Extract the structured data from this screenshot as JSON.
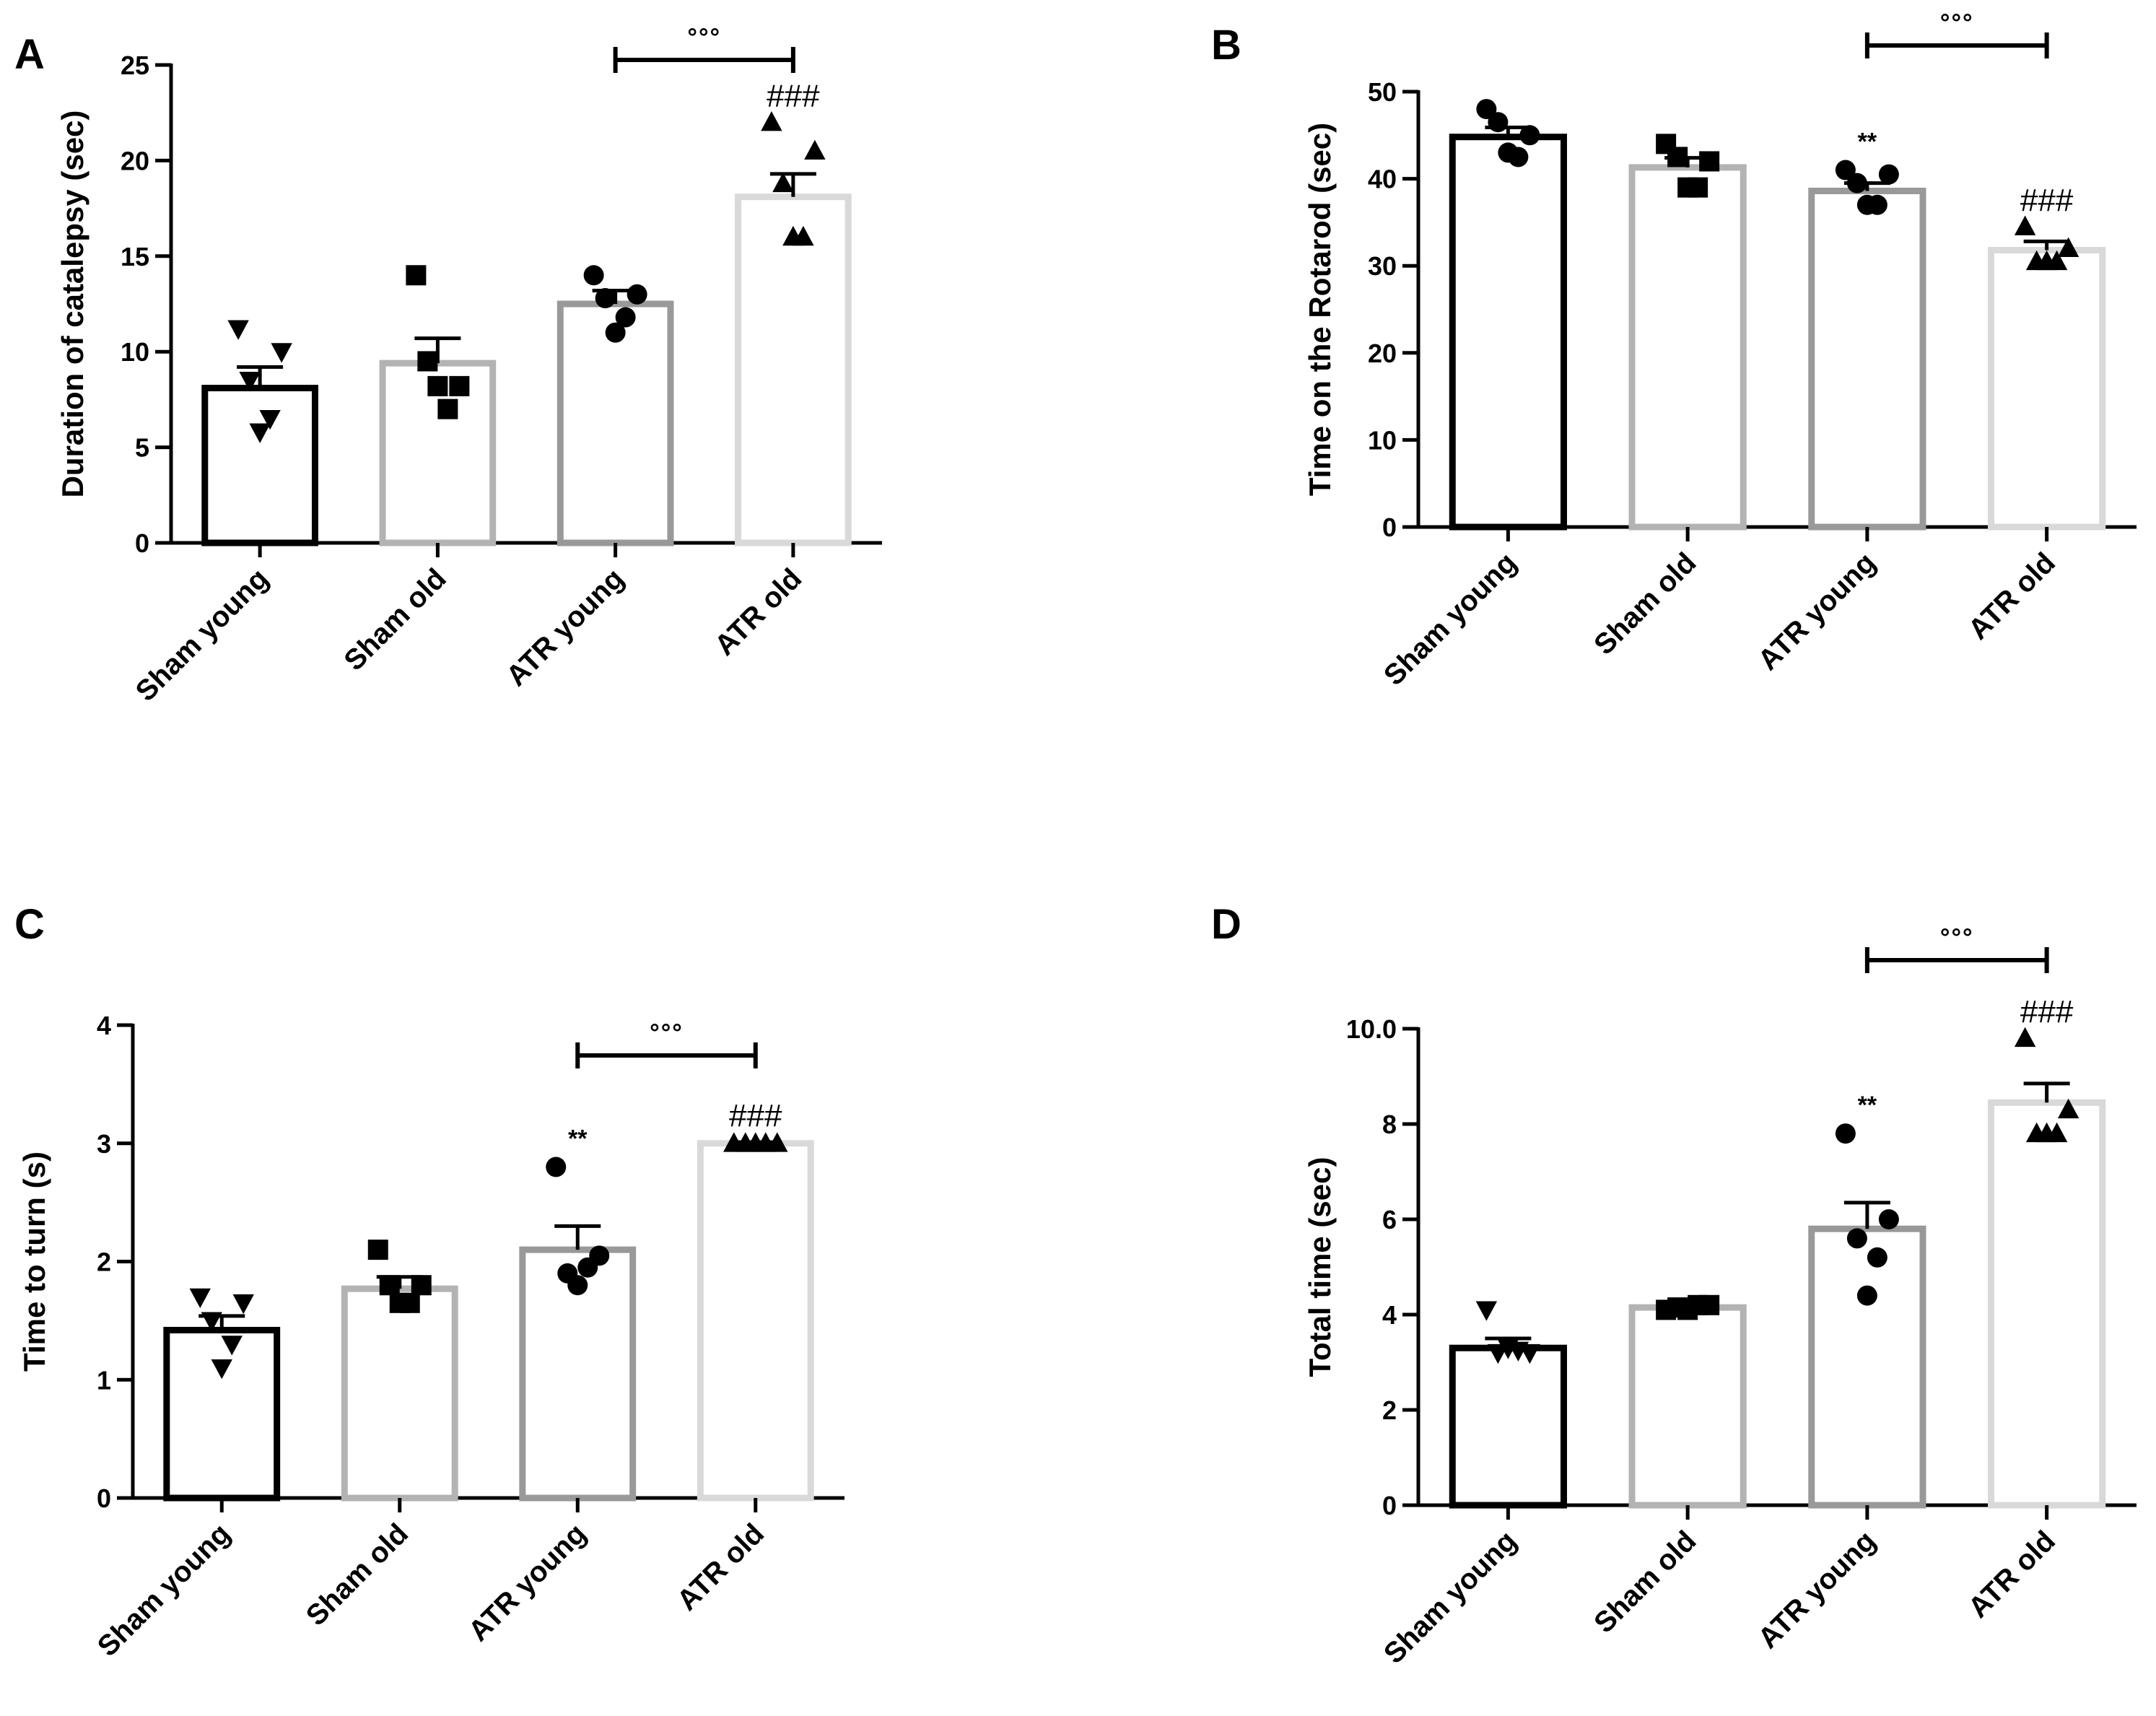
{
  "figure": {
    "group_colors": [
      "#000000",
      "#b3b3b3",
      "#999999",
      "#d9d9d9"
    ],
    "marker_color": "#000000",
    "axis_color": "#000000"
  },
  "chart_data": [
    {
      "panel": "A",
      "type": "bar",
      "categories": [
        "Sham young",
        "Sham old",
        "ATR young",
        "ATR old"
      ],
      "values": [
        8.1,
        9.4,
        12.5,
        18.1
      ],
      "sem": [
        1.1,
        1.3,
        0.7,
        1.2
      ],
      "points": [
        [
          11.2,
          10.0,
          8.5,
          6.5,
          5.8
        ],
        [
          14.0,
          8.2,
          9.5,
          7.0,
          8.2
        ],
        [
          14.0,
          13.0,
          12.8,
          11.8,
          11.0
        ],
        [
          22.0,
          20.5,
          18.8,
          16.0,
          16.0
        ]
      ],
      "marker": "triangle-down",
      "markers": [
        "triangle-down",
        "square",
        "circle",
        "triangle-up"
      ],
      "ylabel": "Duration of catalepsy (sec)",
      "xlabel": "",
      "ylim": [
        0,
        25
      ],
      "yticks": [
        0,
        5,
        10,
        15,
        20,
        25
      ],
      "tick_labels": [
        "0",
        "5",
        "10",
        "15",
        "20",
        "25"
      ],
      "grid": false,
      "annotations": [
        {
          "group": "ATR old",
          "text": "###"
        }
      ],
      "bracket": {
        "from": "ATR young",
        "to": "ATR old",
        "text": "°°°"
      }
    },
    {
      "panel": "B",
      "type": "bar",
      "categories": [
        "Sham young",
        "Sham old",
        "ATR young",
        "ATR old"
      ],
      "values": [
        44.8,
        41.3,
        38.6,
        31.8
      ],
      "sem": [
        1.1,
        1.1,
        0.9,
        1.0
      ],
      "points": [
        [
          48.0,
          45.0,
          46.5,
          42.5,
          43.0
        ],
        [
          44.0,
          42.0,
          42.5,
          39.0,
          39.0
        ],
        [
          41.0,
          40.5,
          39.5,
          37.0,
          37.0
        ],
        [
          34.5,
          32.0,
          30.5,
          30.5,
          30.5
        ]
      ],
      "markers": [
        "circle",
        "square",
        "circle",
        "triangle-up"
      ],
      "ylabel": "Time on the Rotarod (sec)",
      "xlabel": "",
      "ylim": [
        0,
        50
      ],
      "yticks": [
        0,
        10,
        20,
        30,
        40,
        50
      ],
      "tick_labels": [
        "0",
        "10",
        "20",
        "30",
        "40",
        "50"
      ],
      "grid": false,
      "annotations": [
        {
          "group": "ATR young",
          "text": "**"
        },
        {
          "group": "ATR old",
          "text": "###"
        }
      ],
      "bracket": {
        "from": "ATR young",
        "to": "ATR old",
        "text": "°°°"
      }
    },
    {
      "panel": "C",
      "type": "bar",
      "categories": [
        "Sham young",
        "Sham old",
        "ATR young",
        "ATR old"
      ],
      "values": [
        1.42,
        1.77,
        2.1,
        3.0
      ],
      "sem": [
        0.12,
        0.1,
        0.2,
        0.01
      ],
      "points": [
        [
          1.7,
          1.65,
          1.5,
          1.3,
          1.1
        ],
        [
          2.1,
          1.8,
          1.8,
          1.65,
          1.65
        ],
        [
          2.8,
          2.05,
          1.9,
          1.95,
          1.8
        ],
        [
          3.0,
          3.0,
          3.0,
          3.0,
          3.0
        ]
      ],
      "markers": [
        "triangle-down",
        "square",
        "circle",
        "triangle-up"
      ],
      "ylabel": "Time to turn (s)",
      "xlabel": "",
      "ylim": [
        0,
        4
      ],
      "yticks": [
        0,
        1,
        2,
        3,
        4
      ],
      "tick_labels": [
        "0",
        "1",
        "2",
        "3",
        "4"
      ],
      "grid": false,
      "annotations": [
        {
          "group": "ATR young",
          "text": "**"
        },
        {
          "group": "ATR old",
          "text": "###"
        }
      ],
      "bracket": {
        "from": "ATR young",
        "to": "ATR old",
        "text": "°°°"
      }
    },
    {
      "panel": "D",
      "type": "bar",
      "categories": [
        "Sham young",
        "Sham old",
        "ATR young",
        "ATR old"
      ],
      "values": [
        3.3,
        4.15,
        5.8,
        8.45
      ],
      "sem": [
        0.2,
        0.05,
        0.55,
        0.4
      ],
      "points": [
        [
          4.1,
          3.2,
          3.2,
          3.25,
          3.3
        ],
        [
          4.1,
          4.2,
          4.15,
          4.2,
          4.1
        ],
        [
          7.8,
          6.0,
          5.6,
          5.2,
          4.4
        ],
        [
          9.8,
          8.3,
          7.8,
          7.8,
          7.8
        ]
      ],
      "markers": [
        "triangle-down",
        "square",
        "circle",
        "triangle-up"
      ],
      "ylabel": "Total time (sec)",
      "xlabel": "",
      "ylim": [
        0,
        10
      ],
      "yticks": [
        0,
        2,
        4,
        6,
        8,
        10
      ],
      "tick_labels": [
        "0",
        "2",
        "4",
        "6",
        "8",
        "10.0"
      ],
      "grid": false,
      "annotations": [
        {
          "group": "ATR young",
          "text": "**"
        },
        {
          "group": "ATR old",
          "text": "###"
        }
      ],
      "bracket": {
        "from": "ATR young",
        "to": "ATR old",
        "text": "°°°"
      }
    }
  ]
}
